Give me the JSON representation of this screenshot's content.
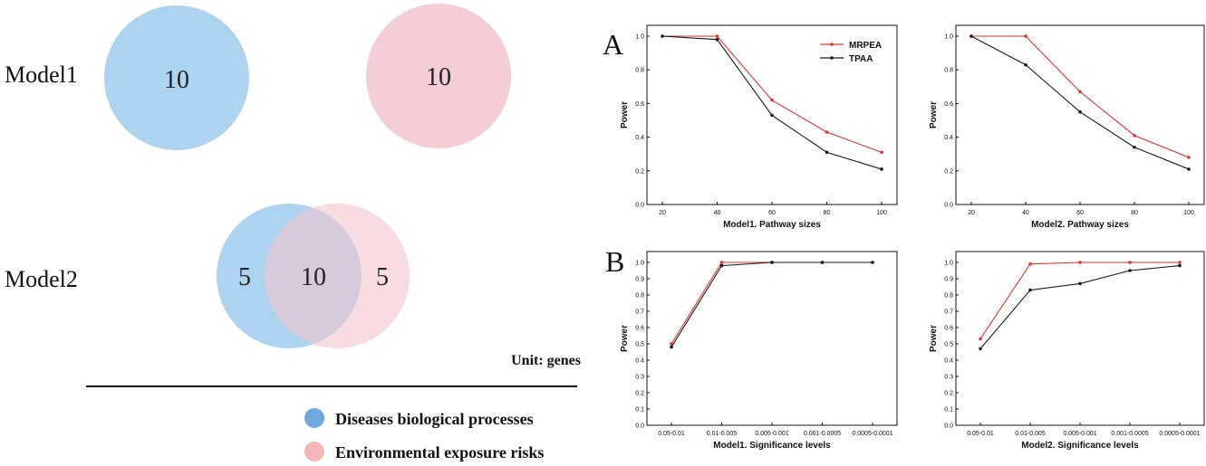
{
  "venn": {
    "model1_label": "Model1",
    "model2_label": "Model2",
    "model1": {
      "diseases_count": "10",
      "environment_count": "10"
    },
    "model2": {
      "diseases_only": "5",
      "overlap": "10",
      "environment_only": "5"
    },
    "unit": "Unit: genes",
    "legend": [
      {
        "label": "Diseases biological processes",
        "color": "#9ecbec"
      },
      {
        "label": "Environmental exposure risks",
        "color": "#f3c4cf"
      }
    ]
  },
  "panel_labels": {
    "a": "A",
    "b": "B"
  },
  "colors": {
    "mrpea": "#e8302d",
    "tpaa": "#1a1a1a"
  },
  "chart_data": [
    {
      "id": "a1",
      "type": "line",
      "xlabel": "Model1. Pathway sizes",
      "ylabel": "Power",
      "categories": [
        "20",
        "40",
        "60",
        "80",
        "100"
      ],
      "ylim": [
        0,
        1
      ],
      "yticks": [
        "0.0",
        "0.2",
        "0.4",
        "0.6",
        "0.8",
        "1.0"
      ],
      "legend": "top-right",
      "series": [
        {
          "name": "MRPEA",
          "values": [
            1.0,
            1.0,
            0.62,
            0.43,
            0.31
          ]
        },
        {
          "name": "TPAA",
          "values": [
            1.0,
            0.98,
            0.53,
            0.31,
            0.21
          ]
        }
      ]
    },
    {
      "id": "a2",
      "type": "line",
      "xlabel": "Model2. Pathway sizes",
      "ylabel": "Power",
      "categories": [
        "20",
        "40",
        "60",
        "80",
        "100"
      ],
      "ylim": [
        0,
        1
      ],
      "yticks": [
        "0.0",
        "0.2",
        "0.4",
        "0.6",
        "0.8",
        "1.0"
      ],
      "series": [
        {
          "name": "MRPEA",
          "values": [
            1.0,
            1.0,
            0.67,
            0.41,
            0.28
          ]
        },
        {
          "name": "TPAA",
          "values": [
            1.0,
            0.83,
            0.55,
            0.34,
            0.21
          ]
        }
      ]
    },
    {
      "id": "b1",
      "type": "line",
      "xlabel": "Model1. Significance levels",
      "ylabel": "Power",
      "categories": [
        "0.05-0.01",
        "0.01-0.005",
        "0.005-0.001",
        "0.001-0.0005",
        "0.0005-0.0001"
      ],
      "ylim": [
        0,
        1
      ],
      "yticks": [
        "0.0",
        "0.1",
        "0.2",
        "0.3",
        "0.4",
        "0.5",
        "0.6",
        "0.7",
        "0.8",
        "0.9",
        "1.0"
      ],
      "series": [
        {
          "name": "MRPEA",
          "values": [
            0.5,
            1.0,
            1.0,
            1.0,
            1.0
          ]
        },
        {
          "name": "TPAA",
          "values": [
            0.48,
            0.98,
            1.0,
            1.0,
            1.0
          ]
        }
      ]
    },
    {
      "id": "b2",
      "type": "line",
      "xlabel": "Model2. Significance levels",
      "ylabel": "Power",
      "categories": [
        "0.05-0.01",
        "0.01-0.005",
        "0.005-0.001",
        "0.001-0.0005",
        "0.0005-0.0001"
      ],
      "ylim": [
        0,
        1
      ],
      "yticks": [
        "0.0",
        "0.1",
        "0.2",
        "0.3",
        "0.4",
        "0.5",
        "0.6",
        "0.7",
        "0.8",
        "0.9",
        "1.0"
      ],
      "series": [
        {
          "name": "MRPEA",
          "values": [
            0.53,
            0.99,
            1.0,
            1.0,
            1.0
          ]
        },
        {
          "name": "TPAA",
          "values": [
            0.47,
            0.83,
            0.87,
            0.95,
            0.98
          ]
        }
      ]
    }
  ]
}
